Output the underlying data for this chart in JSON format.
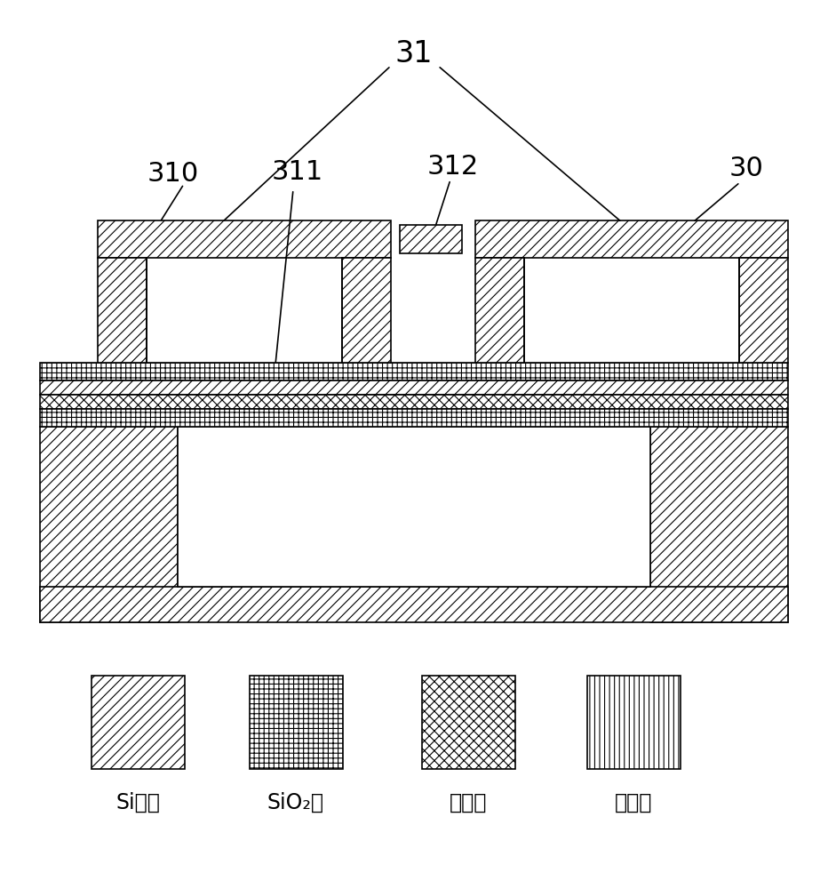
{
  "fig_width": 9.32,
  "fig_height": 10.0,
  "dpi": 100,
  "bg_color": "#ffffff",
  "line_color": "#000000",
  "legend_labels": [
    "Si衬底",
    "SiO₂层",
    "电极层",
    "压电层"
  ],
  "label_31": "31",
  "label_310": "310",
  "label_311": "311",
  "label_312": "312",
  "label_30": "30",
  "lw": 1.2,
  "fs_label": 22,
  "fs_legend": 17
}
